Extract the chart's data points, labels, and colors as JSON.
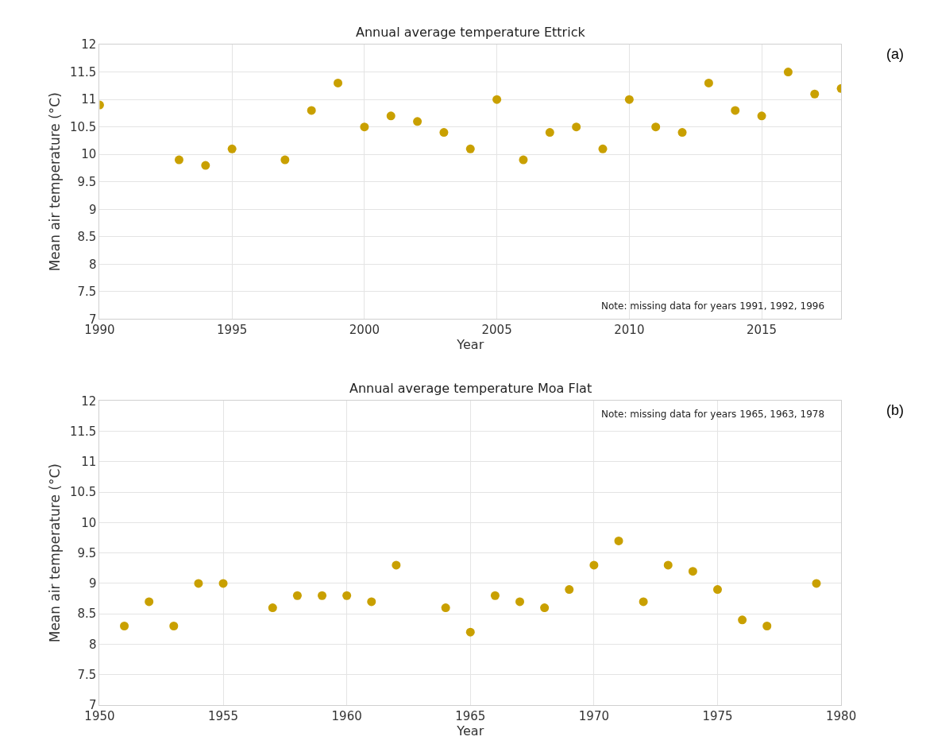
{
  "chart_data": [
    {
      "type": "scatter",
      "title": "Annual average temperature Ettrick",
      "xlabel": "Year",
      "ylabel": "Mean air temperature (°C)",
      "x": [
        1990,
        1993,
        1994,
        1995,
        1997,
        1998,
        1999,
        2000,
        2001,
        2002,
        2003,
        2004,
        2005,
        2006,
        2007,
        2008,
        2009,
        2010,
        2011,
        2012,
        2013,
        2014,
        2015,
        2016,
        2017,
        2018
      ],
      "series": [
        {
          "color": "#c9a000",
          "values": [
            10.9,
            9.9,
            9.8,
            10.1,
            9.9,
            10.8,
            11.3,
            10.5,
            10.7,
            10.6,
            10.4,
            10.1,
            11.0,
            9.9,
            10.4,
            10.5,
            10.1,
            11.0,
            10.5,
            10.4,
            11.3,
            10.8,
            10.7,
            11.5,
            11.1,
            11.2
          ]
        }
      ],
      "xlim": [
        1990,
        2018
      ],
      "xticks": [
        1990,
        1995,
        2000,
        2005,
        2010,
        2015
      ],
      "ylim": [
        7,
        12
      ],
      "yticks": [
        7,
        7.5,
        8,
        8.5,
        9,
        9.5,
        10,
        10.5,
        11,
        11.5,
        12
      ],
      "grid": true,
      "marker": "circle",
      "annotations": [
        "Note: missing data for years 1991, 1992, 1996",
        "(a)"
      ]
    },
    {
      "type": "scatter",
      "title": "Annual average temperature Moa Flat",
      "xlabel": "Year",
      "ylabel": "Mean air temperature (°C)",
      "x": [
        1951,
        1952,
        1953,
        1954,
        1955,
        1957,
        1958,
        1959,
        1960,
        1961,
        1962,
        1964,
        1965,
        1966,
        1967,
        1968,
        1969,
        1970,
        1971,
        1972,
        1973,
        1974,
        1975,
        1976,
        1977,
        1979
      ],
      "series": [
        {
          "color": "#c9a000",
          "values": [
            8.3,
            8.7,
            8.3,
            9.0,
            9.0,
            8.6,
            8.8,
            8.8,
            8.8,
            8.7,
            9.3,
            8.6,
            8.2,
            8.8,
            8.7,
            8.6,
            8.9,
            9.3,
            9.7,
            8.7,
            9.3,
            9.2,
            8.9,
            8.4,
            8.3,
            9.0
          ]
        }
      ],
      "xlim": [
        1950,
        1980
      ],
      "xticks": [
        1950,
        1955,
        1960,
        1965,
        1970,
        1975,
        1980
      ],
      "ylim": [
        7,
        12
      ],
      "yticks": [
        7,
        7.5,
        8,
        8.5,
        9,
        9.5,
        10,
        10.5,
        11,
        11.5,
        12
      ],
      "grid": true,
      "marker": "circle",
      "annotations": [
        "Note: missing data for years 1965, 1963, 1978",
        "(b)"
      ]
    }
  ]
}
